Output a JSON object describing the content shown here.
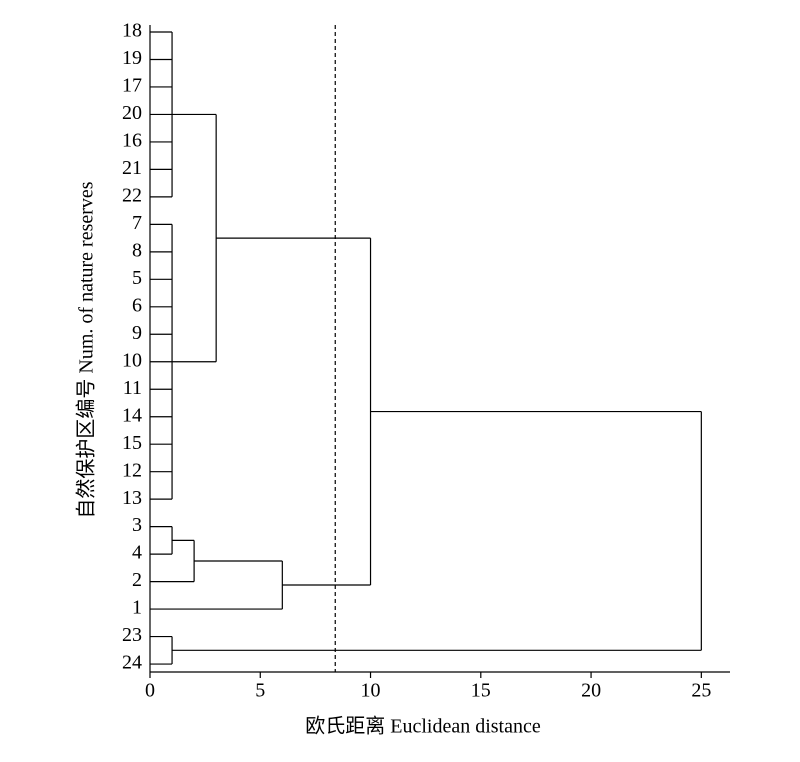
{
  "chart_data": {
    "type": "dendrogram",
    "xlabel": "欧氏距离 Euclidean distance",
    "ylabel": "自然保护区编号 Num. of nature reserves",
    "leaves": [
      "18",
      "19",
      "17",
      "20",
      "16",
      "21",
      "22",
      "7",
      "8",
      "5",
      "6",
      "9",
      "10",
      "11",
      "14",
      "15",
      "12",
      "13",
      "3",
      "4",
      "2",
      "1",
      "23",
      "24"
    ],
    "merges": [
      {
        "children": [
          0,
          1,
          2,
          3,
          4,
          5,
          6
        ],
        "height": 1
      },
      {
        "children": [
          7,
          8,
          9,
          10,
          11,
          12,
          13,
          14,
          15,
          16,
          17
        ],
        "height": 1
      },
      {
        "children": [
          24,
          25
        ],
        "height": 3
      },
      {
        "children": [
          18,
          19
        ],
        "height": 1
      },
      {
        "children": [
          27,
          20
        ],
        "height": 2
      },
      {
        "children": [
          28,
          21
        ],
        "height": 6
      },
      {
        "children": [
          26,
          29
        ],
        "height": 10
      },
      {
        "children": [
          22,
          23
        ],
        "height": 1
      },
      {
        "children": [
          30,
          31
        ],
        "height": 25
      }
    ],
    "threshold": 8.4,
    "xlim": [
      0,
      26.3
    ],
    "xticks": [
      0,
      5,
      10,
      15,
      20,
      25
    ]
  }
}
